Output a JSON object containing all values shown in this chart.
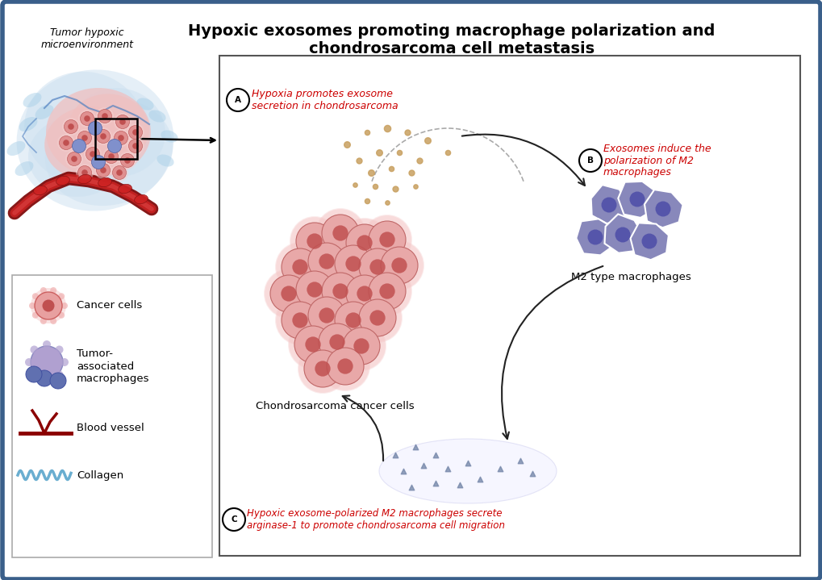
{
  "title": "Hypoxic exosomes promoting macrophage polarization and\nchondrosarcoma cell metastasis",
  "title_fontsize": 14,
  "title_fontweight": "bold",
  "bg_color": "#ffffff",
  "border_color": "#3a5f8a",
  "border_linewidth": 4,
  "label_A": "Hypoxia promotes exosome\nsecretion in chondrosarcoma",
  "label_B": "Exosomes induce the\npolarization of M2\nmacrophages",
  "label_C": "Hypoxic exosome-polarized M2 macrophages secrete\narginase-1 to promote chondrosarcoma cell migration",
  "label_color": "#cc0000",
  "label_cancer_cells": "Chondrosarcoma cancer cells",
  "label_m2_macro": "M2 type macrophages",
  "tumor_label": "Tumor hypoxic\nmicroenvironment",
  "legend_items": [
    "Cancer cells",
    "Tumor-\nassociated\nmacrophages",
    "Blood vessel",
    "Collagen"
  ],
  "cancer_cell_color_outer": "#e8a0a0",
  "cancer_cell_color_inner": "#c05050",
  "macrophage_color_outer": "#8888bb",
  "macrophage_color_inner": "#5555aa",
  "exosome_color": "#c8a060",
  "arginase_color": "#7788aa",
  "arrow_color": "#222222"
}
